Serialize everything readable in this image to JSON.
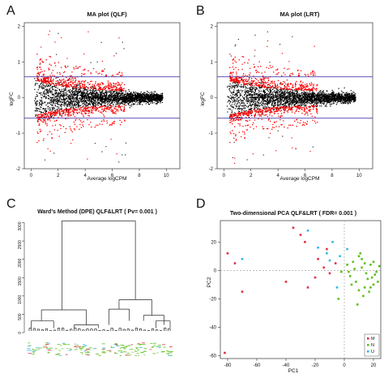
{
  "panels": {
    "A": {
      "letter": "A",
      "title": "MA plot (QLF)",
      "xlabel": "Average logCPM",
      "ylabel": "logFC",
      "xticks": [
        "0",
        "2",
        "4",
        "6",
        "8",
        "10"
      ],
      "yticks": [
        "-2",
        "-1",
        "0",
        "1",
        "2"
      ]
    },
    "B": {
      "letter": "B",
      "title": "MA plot (LRT)",
      "xlabel": "Average logCPM",
      "ylabel": "logFC",
      "xticks": [
        "0",
        "2",
        "4",
        "6",
        "8",
        "10"
      ],
      "yticks": [
        "-2",
        "-1",
        "0",
        "1",
        "2"
      ]
    },
    "C": {
      "letter": "C",
      "title": "Ward's Method (DPE) QLF&LRT ( Pv= 0.001 )",
      "yticks": [
        "0",
        "500",
        "1000",
        "1500",
        "2000",
        "2500",
        "3000"
      ]
    },
    "D": {
      "letter": "D",
      "title": "Two-dimensional PCA QLF&LRT ( FDR= 0.001 )",
      "xlabel": "PC1",
      "ylabel": "PC2",
      "xticks": [
        "-80",
        "-60",
        "-40",
        "-20",
        "0",
        "20"
      ],
      "yticks": [
        "-60",
        "-40",
        "-20",
        "0",
        "20"
      ],
      "legend": [
        "M",
        "N",
        "U"
      ]
    }
  },
  "colors": {
    "ma_points": "#000000",
    "ma_significant": "#ff0000",
    "ma_threshold": "#4a3fb0",
    "M": "#e0304a",
    "N": "#5fc01c",
    "U": "#35b8e8"
  },
  "chart_data": [
    {
      "type": "scatter",
      "title": "MA plot (QLF)",
      "xlabel": "Average logCPM",
      "ylabel": "logFC",
      "xlim": [
        -0.5,
        11
      ],
      "ylim": [
        -2,
        2.1
      ],
      "thresholds": [
        0.58,
        -0.58
      ],
      "series": [
        {
          "name": "",
          "points": [
            [
              0.5,
              0.05
            ],
            [
              1,
              -0.1
            ],
            [
              2,
              0.12
            ],
            [
              3,
              -0.08
            ],
            [
              4,
              0.06
            ],
            [
              5,
              -0.04
            ],
            [
              6,
              0.03
            ],
            [
              7,
              -0.02
            ],
            [
              8,
              0.02
            ],
            [
              9,
              0.0
            ]
          ]
        },
        {
          "name": "",
          "points": [
            [
              2,
              0.45
            ],
            [
              2.5,
              -0.42
            ],
            [
              3,
              0.4
            ],
            [
              4,
              -0.38
            ],
            [
              4.5,
              1.5
            ],
            [
              5,
              0.3
            ],
            [
              1,
              1.2
            ],
            [
              1.5,
              -1.3
            ],
            [
              3,
              0.8
            ]
          ]
        }
      ]
    },
    {
      "type": "scatter",
      "title": "MA plot (LRT)",
      "xlabel": "Average logCPM",
      "ylabel": "logFC",
      "xlim": [
        -0.5,
        11
      ],
      "ylim": [
        -2,
        2.1
      ],
      "thresholds": [
        0.58,
        -0.58
      ],
      "series": [
        {
          "name": "",
          "points": [
            [
              0.5,
              0.05
            ],
            [
              1,
              -0.1
            ],
            [
              2,
              0.12
            ],
            [
              3,
              -0.08
            ],
            [
              4,
              0.06
            ],
            [
              5,
              -0.04
            ],
            [
              6,
              0.03
            ],
            [
              7,
              -0.02
            ],
            [
              8,
              0.02
            ],
            [
              9,
              0.0
            ]
          ]
        },
        {
          "name": "",
          "points": [
            [
              2,
              0.45
            ],
            [
              2.5,
              -0.42
            ],
            [
              3,
              0.4
            ],
            [
              4,
              -0.38
            ],
            [
              4.5,
              1.5
            ],
            [
              5,
              0.3
            ],
            [
              1,
              1.2
            ],
            [
              1.5,
              -1.3
            ],
            [
              3,
              0.8
            ]
          ]
        }
      ]
    },
    {
      "type": "dendrogram",
      "title": "Ward's Method (DPE) QLF&LRT ( Pv= 0.001 )",
      "ylim": [
        0,
        3100
      ],
      "merges": [
        {
          "height": 3050,
          "note": "root"
        },
        {
          "height": 620
        },
        {
          "height": 900
        },
        {
          "height": 640
        },
        {
          "height": 470
        },
        {
          "height": 320
        },
        {
          "height": 210
        },
        {
          "height": 120
        }
      ]
    },
    {
      "type": "scatter",
      "title": "Two-dimensional PCA QLF&LRT ( FDR= 0.001 )",
      "xlabel": "PC1",
      "ylabel": "PC2",
      "xlim": [
        -85,
        25
      ],
      "ylim": [
        -62,
        35
      ],
      "legend_position": "bottom-right",
      "series": [
        {
          "name": "M",
          "points": [
            [
              -80,
              12
            ],
            [
              -75,
              5
            ],
            [
              -70,
              -15
            ],
            [
              -82,
              -58
            ],
            [
              -40,
              -8
            ],
            [
              -35,
              30
            ],
            [
              -30,
              25
            ],
            [
              -27,
              20
            ],
            [
              -20,
              -5
            ],
            [
              -18,
              8
            ],
            [
              -14,
              2
            ],
            [
              -10,
              -2
            ],
            [
              -6,
              5
            ],
            [
              -25,
              -12
            ],
            [
              -12,
              15
            ]
          ]
        },
        {
          "name": "N",
          "points": [
            [
              2,
              4
            ],
            [
              4,
              -4
            ],
            [
              6,
              6
            ],
            [
              8,
              -8
            ],
            [
              10,
              10
            ],
            [
              12,
              2
            ],
            [
              14,
              -12
            ],
            [
              15,
              -2
            ],
            [
              16,
              -6
            ],
            [
              18,
              4
            ],
            [
              20,
              -10
            ],
            [
              22,
              -1
            ],
            [
              24,
              3
            ],
            [
              13,
              -18
            ],
            [
              17,
              -15
            ],
            [
              9,
              -24
            ],
            [
              11,
              12
            ],
            [
              19,
              -5
            ],
            [
              21,
              -3
            ],
            [
              23,
              -8
            ],
            [
              10,
              -14
            ],
            [
              5,
              -10
            ],
            [
              12,
              8
            ],
            [
              7,
              1
            ],
            [
              3,
              -1
            ],
            [
              -2,
              -1
            ],
            [
              -4,
              -20
            ],
            [
              14,
              5
            ],
            [
              18,
              -12
            ],
            [
              20,
              6
            ]
          ]
        },
        {
          "name": "U",
          "points": [
            [
              -70,
              8
            ],
            [
              -25,
              28
            ],
            [
              -18,
              16
            ],
            [
              -10,
              7
            ],
            [
              -8,
              20
            ],
            [
              -5,
              -12
            ],
            [
              -3,
              10
            ],
            [
              -12,
              12
            ],
            [
              2,
              15
            ]
          ]
        }
      ]
    }
  ]
}
